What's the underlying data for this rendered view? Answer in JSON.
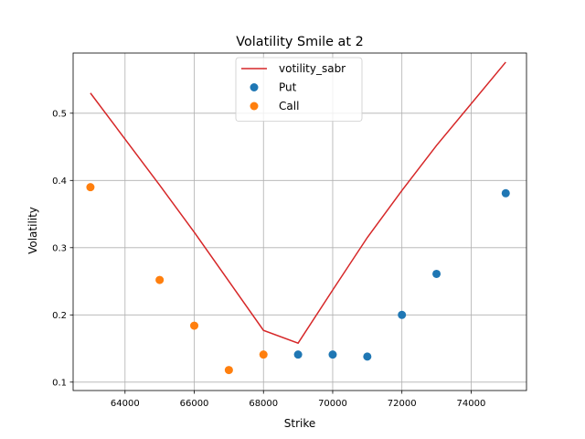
{
  "chart_data": {
    "type": "scatter",
    "title": "Volatility Smile at 2",
    "xlabel": "Strike",
    "ylabel": "Volatility",
    "xlim": [
      62500,
      75600
    ],
    "ylim": [
      0.0875,
      0.5895
    ],
    "xticks": [
      64000,
      66000,
      68000,
      70000,
      72000,
      74000
    ],
    "yticks": [
      0.1,
      0.2,
      0.3,
      0.4,
      0.5
    ],
    "xtick_labels": [
      "64000",
      "66000",
      "68000",
      "70000",
      "72000",
      "74000"
    ],
    "ytick_labels": [
      "0.1",
      "0.2",
      "0.3",
      "0.4",
      "0.5"
    ],
    "grid": true,
    "legend_position": "upper-center",
    "series": [
      {
        "name": "votility_sabr",
        "kind": "line",
        "color": "#d62728",
        "x": [
          63000,
          65000,
          66000,
          68000,
          69000,
          70000,
          71000,
          72000,
          73000,
          75000
        ],
        "y": [
          0.53,
          0.393,
          0.323,
          0.177,
          0.158,
          0.237,
          0.315,
          0.385,
          0.452,
          0.576
        ]
      },
      {
        "name": "Put",
        "kind": "scatter",
        "color": "#1f77b4",
        "x": [
          69000,
          70000,
          71000,
          72000,
          73000,
          75000
        ],
        "y": [
          0.141,
          0.141,
          0.138,
          0.2,
          0.261,
          0.381
        ]
      },
      {
        "name": "Call",
        "kind": "scatter",
        "color": "#ff7f0e",
        "x": [
          63000,
          65000,
          66000,
          67000,
          68000
        ],
        "y": [
          0.39,
          0.252,
          0.184,
          0.118,
          0.141
        ]
      }
    ]
  }
}
